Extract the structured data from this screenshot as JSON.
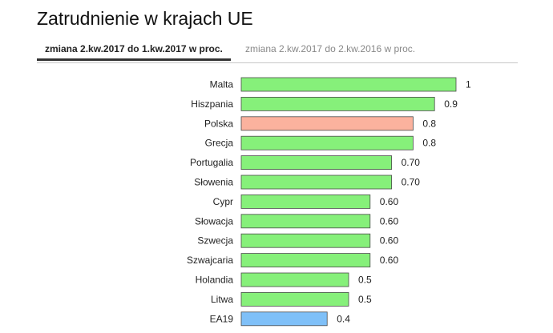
{
  "page": {
    "title": "Zatrudnienie w krajach UE",
    "tabs": [
      {
        "label": "zmiana 2.kw.2017 do 1.kw.2017 w proc.",
        "active": true
      },
      {
        "label": "zmiana 2.kw.2017 do 2.kw.2016 w proc.",
        "active": false
      }
    ]
  },
  "colors": {
    "default": "#86f07a",
    "highlight": "#fbb29e",
    "aggregate": "#7fc0f8",
    "border": "#4a4a4a"
  },
  "chart_data": {
    "type": "bar",
    "orientation": "horizontal",
    "title": "",
    "xlabel": "",
    "ylabel": "",
    "xlim": [
      0,
      1.0
    ],
    "categories": [
      "Malta",
      "Hiszpania",
      "Polska",
      "Grecja",
      "Portugalia",
      "Słowenia",
      "Cypr",
      "Słowacja",
      "Szwecja",
      "Szwajcaria",
      "Holandia",
      "Litwa",
      "EA19"
    ],
    "values": [
      1,
      0.9,
      0.8,
      0.8,
      0.7,
      0.7,
      0.6,
      0.6,
      0.6,
      0.6,
      0.5,
      0.5,
      0.4
    ],
    "value_labels": [
      "1",
      "0.9",
      "0.8",
      "0.8",
      "0.70",
      "0.70",
      "0.60",
      "0.60",
      "0.60",
      "0.60",
      "0.5",
      "0.5",
      "0.4"
    ],
    "bar_colors": [
      "default",
      "default",
      "highlight",
      "default",
      "default",
      "default",
      "default",
      "default",
      "default",
      "default",
      "default",
      "default",
      "aggregate"
    ]
  }
}
